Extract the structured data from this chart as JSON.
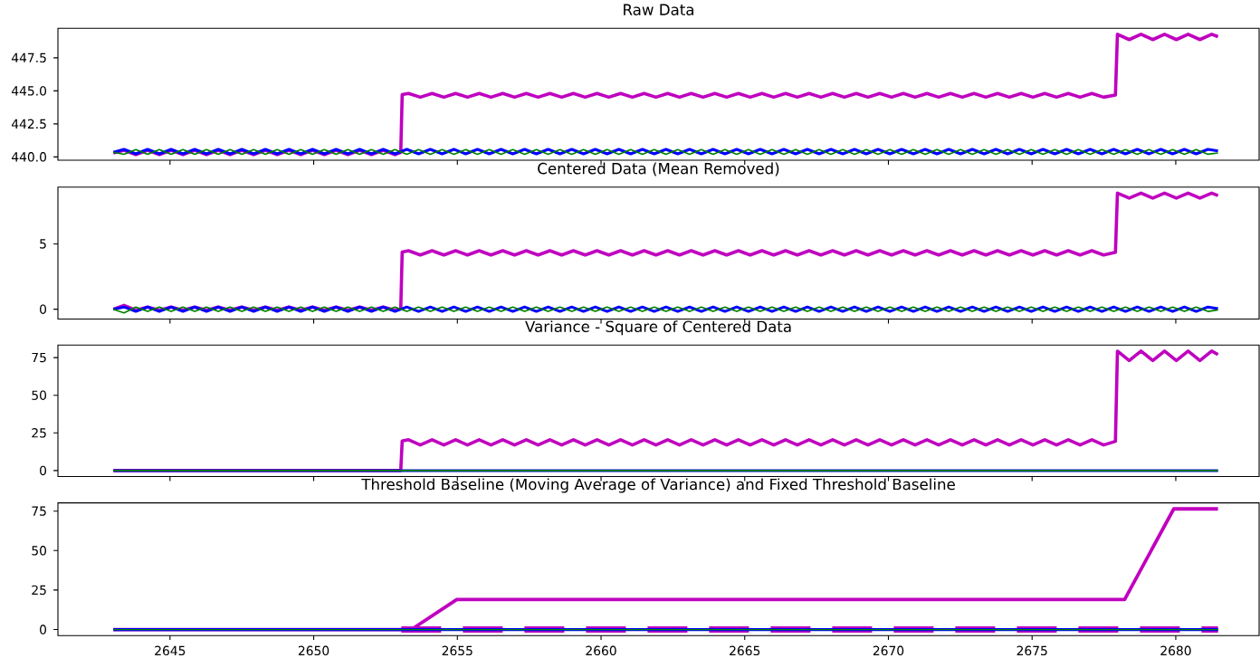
{
  "chart_data": [
    {
      "type": "line",
      "title": "Raw Data",
      "xlim": [
        2641.1,
        2682.9
      ],
      "xticks": [
        2645,
        2650,
        2655,
        2660,
        2665,
        2670,
        2675,
        2680
      ],
      "ylim": [
        439.75,
        449.74
      ],
      "yticks": [
        {
          "value": 440,
          "label": "440.0"
        },
        442.5,
        {
          "value": 445,
          "label": "445.0"
        },
        447.5
      ],
      "tick_labels": "y",
      "x": [
        2643.03,
        2643.4,
        2643.81,
        2644.22,
        2644.63,
        2645.04,
        2645.45,
        2645.86,
        2646.27,
        2646.68,
        2647.09,
        2647.5,
        2647.91,
        2648.32,
        2648.73,
        2649.14,
        2649.55,
        2649.96,
        2650.37,
        2650.78,
        2651.19,
        2651.6,
        2652.01,
        2652.42,
        2652.83,
        2653.24,
        2653.65,
        2654.06,
        2654.47,
        2654.88,
        2655.29,
        2655.7,
        2656.11,
        2656.52,
        2656.93,
        2657.34,
        2657.75,
        2658.16,
        2658.57,
        2658.98,
        2659.39,
        2659.8,
        2660.21,
        2660.62,
        2661.03,
        2661.44,
        2661.85,
        2662.26,
        2662.67,
        2663.08,
        2663.49,
        2663.9,
        2664.31,
        2664.72,
        2665.13,
        2665.54,
        2665.95,
        2666.36,
        2666.77,
        2667.18,
        2667.59,
        2668.0,
        2668.41,
        2668.82,
        2669.23,
        2669.64,
        2670.05,
        2670.46,
        2670.87,
        2671.28,
        2671.69,
        2672.1,
        2672.51,
        2672.92,
        2673.33,
        2673.74,
        2674.15,
        2674.56,
        2674.97,
        2675.38,
        2675.79,
        2676.2,
        2676.61,
        2677.02,
        2677.43,
        2677.84,
        2678.25,
        2678.66,
        2679.07,
        2679.48,
        2679.89,
        2680.3,
        2680.71,
        2681.12,
        2681.47
      ],
      "series": [
        {
          "color": "#bf00bf",
          "x": [
            2643.03,
            2643.4,
            2643.81,
            2644.22,
            2644.63,
            2645.04,
            2645.45,
            2645.86,
            2646.27,
            2646.68,
            2647.09,
            2647.5,
            2647.91,
            2648.32,
            2648.73,
            2649.14,
            2649.55,
            2649.96,
            2650.37,
            2650.78,
            2651.19,
            2651.6,
            2652.01,
            2652.42,
            2652.83,
            2653.03,
            2653.08,
            2653.3,
            2653.71,
            2654.12,
            2654.53,
            2654.94,
            2655.35,
            2655.76,
            2656.17,
            2656.58,
            2656.99,
            2657.4,
            2657.81,
            2658.22,
            2658.63,
            2659.04,
            2659.45,
            2659.86,
            2660.27,
            2660.68,
            2661.09,
            2661.5,
            2661.91,
            2662.32,
            2662.73,
            2663.14,
            2663.55,
            2663.96,
            2664.37,
            2664.78,
            2665.19,
            2665.6,
            2666.01,
            2666.42,
            2666.83,
            2667.24,
            2667.65,
            2668.06,
            2668.47,
            2668.88,
            2669.29,
            2669.7,
            2670.11,
            2670.52,
            2670.93,
            2671.34,
            2671.75,
            2672.16,
            2672.57,
            2672.98,
            2673.39,
            2673.8,
            2674.21,
            2674.62,
            2675.03,
            2675.44,
            2675.85,
            2676.26,
            2676.67,
            2677.08,
            2677.49,
            2677.9,
            2677.97,
            2678.38,
            2678.79,
            2679.2,
            2679.61,
            2680.02,
            2680.43,
            2680.84,
            2681.25,
            2681.47
          ],
          "values": [
            440.3,
            440.5,
            440.17,
            440.5,
            440.17,
            440.5,
            440.17,
            440.5,
            440.17,
            440.5,
            440.17,
            440.5,
            440.17,
            440.5,
            440.17,
            440.5,
            440.17,
            440.5,
            440.17,
            440.5,
            440.17,
            440.5,
            440.17,
            440.5,
            440.17,
            440.35,
            444.72,
            444.8,
            444.52,
            444.8,
            444.52,
            444.8,
            444.52,
            444.8,
            444.52,
            444.8,
            444.52,
            444.8,
            444.52,
            444.8,
            444.52,
            444.8,
            444.52,
            444.8,
            444.52,
            444.8,
            444.52,
            444.8,
            444.52,
            444.8,
            444.52,
            444.8,
            444.52,
            444.8,
            444.52,
            444.8,
            444.52,
            444.8,
            444.52,
            444.8,
            444.52,
            444.8,
            444.52,
            444.8,
            444.52,
            444.8,
            444.52,
            444.8,
            444.52,
            444.8,
            444.52,
            444.8,
            444.52,
            444.8,
            444.52,
            444.8,
            444.52,
            444.8,
            444.52,
            444.8,
            444.52,
            444.8,
            444.52,
            444.8,
            444.52,
            444.8,
            444.52,
            444.68,
            449.28,
            448.88,
            449.28,
            448.88,
            449.28,
            448.88,
            449.28,
            448.88,
            449.28,
            449.1
          ]
        },
        {
          "color": "#0000ff",
          "values": [
            440.35,
            440.57,
            440.23,
            440.57,
            440.23,
            440.57,
            440.23,
            440.57,
            440.23,
            440.57,
            440.23,
            440.57,
            440.23,
            440.57,
            440.23,
            440.57,
            440.23,
            440.57,
            440.23,
            440.57,
            440.23,
            440.57,
            440.23,
            440.57,
            440.23,
            440.57,
            440.23,
            440.57,
            440.23,
            440.57,
            440.23,
            440.57,
            440.23,
            440.57,
            440.23,
            440.57,
            440.23,
            440.57,
            440.23,
            440.57,
            440.23,
            440.57,
            440.23,
            440.57,
            440.23,
            440.57,
            440.23,
            440.57,
            440.23,
            440.57,
            440.23,
            440.57,
            440.23,
            440.57,
            440.23,
            440.57,
            440.23,
            440.57,
            440.23,
            440.57,
            440.23,
            440.57,
            440.23,
            440.57,
            440.23,
            440.57,
            440.23,
            440.57,
            440.23,
            440.57,
            440.23,
            440.57,
            440.23,
            440.57,
            440.23,
            440.57,
            440.23,
            440.57,
            440.23,
            440.57,
            440.23,
            440.57,
            440.23,
            440.57,
            440.23,
            440.57,
            440.23,
            440.57,
            440.23,
            440.57,
            440.23,
            440.57,
            440.23,
            440.57,
            440.45
          ]
        },
        {
          "color": "#008000",
          "values": [
            440.35,
            440.2,
            440.55,
            440.2,
            440.55,
            440.2,
            440.55,
            440.2,
            440.55,
            440.2,
            440.55,
            440.2,
            440.55,
            440.2,
            440.55,
            440.2,
            440.55,
            440.2,
            440.55,
            440.2,
            440.55,
            440.2,
            440.55,
            440.2,
            440.55,
            440.2,
            440.55,
            440.2,
            440.55,
            440.2,
            440.55,
            440.2,
            440.55,
            440.2,
            440.55,
            440.2,
            440.55,
            440.2,
            440.55,
            440.2,
            440.55,
            440.2,
            440.55,
            440.2,
            440.55,
            440.2,
            440.55,
            440.2,
            440.55,
            440.2,
            440.55,
            440.2,
            440.55,
            440.2,
            440.55,
            440.2,
            440.55,
            440.2,
            440.55,
            440.2,
            440.55,
            440.2,
            440.55,
            440.2,
            440.55,
            440.2,
            440.55,
            440.2,
            440.55,
            440.2,
            440.55,
            440.2,
            440.55,
            440.2,
            440.55,
            440.2,
            440.55,
            440.2,
            440.55,
            440.2,
            440.55,
            440.2,
            440.55,
            440.2,
            440.55,
            440.2,
            440.55,
            440.2,
            440.55,
            440.2,
            440.55,
            440.2,
            440.55,
            440.2,
            440.3
          ]
        }
      ]
    },
    {
      "type": "line",
      "title": "Centered Data (Mean Removed)",
      "xlim": [
        2641.1,
        2682.9
      ],
      "xticks": [
        2645,
        2650,
        2655,
        2660,
        2665,
        2670,
        2675,
        2680
      ],
      "ylim": [
        -0.75,
        9.35
      ],
      "yticks": [
        0,
        5
      ],
      "tick_labels": "y",
      "x": [
        2643.03,
        2643.4,
        2643.81,
        2644.22,
        2644.63,
        2645.04,
        2645.45,
        2645.86,
        2646.27,
        2646.68,
        2647.09,
        2647.5,
        2647.91,
        2648.32,
        2648.73,
        2649.14,
        2649.55,
        2649.96,
        2650.37,
        2650.78,
        2651.19,
        2651.6,
        2652.01,
        2652.42,
        2652.83,
        2653.24,
        2653.65,
        2654.06,
        2654.47,
        2654.88,
        2655.29,
        2655.7,
        2656.11,
        2656.52,
        2656.93,
        2657.34,
        2657.75,
        2658.16,
        2658.57,
        2658.98,
        2659.39,
        2659.8,
        2660.21,
        2660.62,
        2661.03,
        2661.44,
        2661.85,
        2662.26,
        2662.67,
        2663.08,
        2663.49,
        2663.9,
        2664.31,
        2664.72,
        2665.13,
        2665.54,
        2665.95,
        2666.36,
        2666.77,
        2667.18,
        2667.59,
        2668.0,
        2668.41,
        2668.82,
        2669.23,
        2669.64,
        2670.05,
        2670.46,
        2670.87,
        2671.28,
        2671.69,
        2672.1,
        2672.51,
        2672.92,
        2673.33,
        2673.74,
        2674.15,
        2674.56,
        2674.97,
        2675.38,
        2675.79,
        2676.2,
        2676.61,
        2677.02,
        2677.43,
        2677.84,
        2678.25,
        2678.66,
        2679.07,
        2679.48,
        2679.89,
        2680.3,
        2680.71,
        2681.12,
        2681.47
      ],
      "series": [
        {
          "color": "#bf00bf",
          "x": [
            2643.03,
            2643.4,
            2643.81,
            2644.22,
            2644.63,
            2645.04,
            2645.45,
            2645.86,
            2646.27,
            2646.68,
            2647.09,
            2647.5,
            2647.91,
            2648.32,
            2648.73,
            2649.14,
            2649.55,
            2649.96,
            2650.37,
            2650.78,
            2651.19,
            2651.6,
            2652.01,
            2652.42,
            2652.83,
            2653.03,
            2653.08,
            2653.3,
            2653.71,
            2654.12,
            2654.53,
            2654.94,
            2655.35,
            2655.76,
            2656.17,
            2656.58,
            2656.99,
            2657.4,
            2657.81,
            2658.22,
            2658.63,
            2659.04,
            2659.45,
            2659.86,
            2660.27,
            2660.68,
            2661.09,
            2661.5,
            2661.91,
            2662.32,
            2662.73,
            2663.14,
            2663.55,
            2663.96,
            2664.37,
            2664.78,
            2665.19,
            2665.6,
            2666.01,
            2666.42,
            2666.83,
            2667.24,
            2667.65,
            2668.06,
            2668.47,
            2668.88,
            2669.29,
            2669.7,
            2670.11,
            2670.52,
            2670.93,
            2671.34,
            2671.75,
            2672.16,
            2672.57,
            2672.98,
            2673.39,
            2673.8,
            2674.21,
            2674.62,
            2675.03,
            2675.44,
            2675.85,
            2676.26,
            2676.67,
            2677.08,
            2677.49,
            2677.9,
            2677.97,
            2678.38,
            2678.79,
            2679.2,
            2679.61,
            2680.02,
            2680.43,
            2680.84,
            2681.25,
            2681.47
          ],
          "values": [
            0,
            0.3,
            -0.07,
            0.17,
            -0.07,
            0.17,
            -0.07,
            0.17,
            -0.07,
            0.17,
            -0.07,
            0.17,
            -0.07,
            0.17,
            -0.07,
            0.17,
            -0.07,
            0.17,
            -0.07,
            0.17,
            -0.07,
            0.17,
            -0.07,
            0.17,
            -0.07,
            0.05,
            4.38,
            4.48,
            4.15,
            4.48,
            4.15,
            4.48,
            4.15,
            4.48,
            4.15,
            4.48,
            4.15,
            4.48,
            4.15,
            4.48,
            4.15,
            4.48,
            4.15,
            4.48,
            4.15,
            4.48,
            4.15,
            4.48,
            4.15,
            4.48,
            4.15,
            4.48,
            4.15,
            4.48,
            4.15,
            4.48,
            4.15,
            4.48,
            4.15,
            4.48,
            4.15,
            4.48,
            4.15,
            4.48,
            4.15,
            4.48,
            4.15,
            4.48,
            4.15,
            4.48,
            4.15,
            4.48,
            4.15,
            4.48,
            4.15,
            4.48,
            4.15,
            4.48,
            4.15,
            4.48,
            4.15,
            4.48,
            4.15,
            4.48,
            4.15,
            4.48,
            4.15,
            4.35,
            8.89,
            8.5,
            8.89,
            8.5,
            8.89,
            8.5,
            8.89,
            8.5,
            8.89,
            8.7
          ]
        },
        {
          "color": "#0000ff",
          "values": [
            0,
            0.17,
            -0.17,
            0.17,
            -0.17,
            0.17,
            -0.17,
            0.17,
            -0.17,
            0.17,
            -0.17,
            0.17,
            -0.17,
            0.17,
            -0.17,
            0.17,
            -0.17,
            0.17,
            -0.17,
            0.17,
            -0.17,
            0.17,
            -0.17,
            0.17,
            -0.17,
            0.17,
            -0.17,
            0.17,
            -0.17,
            0.17,
            -0.17,
            0.17,
            -0.17,
            0.17,
            -0.17,
            0.17,
            -0.17,
            0.17,
            -0.17,
            0.17,
            -0.17,
            0.17,
            -0.17,
            0.17,
            -0.17,
            0.17,
            -0.17,
            0.17,
            -0.17,
            0.17,
            -0.17,
            0.17,
            -0.17,
            0.17,
            -0.17,
            0.17,
            -0.17,
            0.17,
            -0.17,
            0.17,
            -0.17,
            0.17,
            -0.17,
            0.17,
            -0.17,
            0.17,
            -0.17,
            0.17,
            -0.17,
            0.17,
            -0.17,
            0.17,
            -0.17,
            0.17,
            -0.17,
            0.17,
            -0.17,
            0.17,
            -0.17,
            0.17,
            -0.17,
            0.17,
            -0.17,
            0.17,
            -0.17,
            0.17,
            -0.17,
            0.17,
            -0.17,
            0.17,
            -0.17,
            0.17,
            -0.17,
            0.17,
            0.05
          ]
        },
        {
          "color": "#008000",
          "values": [
            0,
            -0.28,
            0.17,
            -0.17,
            0.17,
            -0.17,
            0.17,
            -0.17,
            0.17,
            -0.17,
            0.17,
            -0.17,
            0.17,
            -0.17,
            0.17,
            -0.17,
            0.17,
            -0.17,
            0.17,
            -0.17,
            0.17,
            -0.17,
            0.17,
            -0.17,
            0.17,
            -0.17,
            0.17,
            -0.17,
            0.17,
            -0.17,
            0.17,
            -0.17,
            0.17,
            -0.17,
            0.17,
            -0.17,
            0.17,
            -0.17,
            0.17,
            -0.17,
            0.17,
            -0.17,
            0.17,
            -0.17,
            0.17,
            -0.17,
            0.17,
            -0.17,
            0.17,
            -0.17,
            0.17,
            -0.17,
            0.17,
            -0.17,
            0.17,
            -0.17,
            0.17,
            -0.17,
            0.17,
            -0.17,
            0.17,
            -0.17,
            0.17,
            -0.17,
            0.17,
            -0.17,
            0.17,
            -0.17,
            0.17,
            -0.17,
            0.17,
            -0.17,
            0.17,
            -0.17,
            0.17,
            -0.17,
            0.17,
            -0.17,
            0.17,
            -0.17,
            0.17,
            -0.17,
            0.17,
            -0.17,
            0.17,
            -0.17,
            0.17,
            -0.17,
            0.17,
            -0.17,
            0.17,
            -0.17,
            0.17,
            -0.17,
            -0.05
          ]
        }
      ]
    },
    {
      "type": "line",
      "title": "Variance - Square of Centered Data",
      "xlim": [
        2641.1,
        2682.9
      ],
      "xticks": [
        2645,
        2650,
        2655,
        2660,
        2665,
        2670,
        2675,
        2680
      ],
      "ylim": [
        -3.97,
        83.3
      ],
      "yticks": [
        0,
        25,
        50,
        75
      ],
      "tick_labels": "y",
      "series": [
        {
          "color": "#bf00bf",
          "x": [
            2643.03,
            2653.03,
            2653.08,
            2653.3,
            2653.71,
            2654.12,
            2654.53,
            2654.94,
            2655.35,
            2655.76,
            2656.17,
            2656.58,
            2656.99,
            2657.4,
            2657.81,
            2658.22,
            2658.63,
            2659.04,
            2659.45,
            2659.86,
            2660.27,
            2660.68,
            2661.09,
            2661.5,
            2661.91,
            2662.32,
            2662.73,
            2663.14,
            2663.55,
            2663.96,
            2664.37,
            2664.78,
            2665.19,
            2665.6,
            2666.01,
            2666.42,
            2666.83,
            2667.24,
            2667.65,
            2668.06,
            2668.47,
            2668.88,
            2669.29,
            2669.7,
            2670.11,
            2670.52,
            2670.93,
            2671.34,
            2671.75,
            2672.16,
            2672.57,
            2672.98,
            2673.39,
            2673.8,
            2674.21,
            2674.62,
            2675.03,
            2675.44,
            2675.85,
            2676.26,
            2676.67,
            2677.08,
            2677.49,
            2677.9,
            2677.97,
            2678.38,
            2678.79,
            2679.2,
            2679.61,
            2680.02,
            2680.43,
            2680.84,
            2681.25,
            2681.47
          ],
          "values": [
            0,
            0,
            19.6,
            20.5,
            17,
            20.5,
            17,
            20.5,
            17,
            20.5,
            17,
            20.5,
            17,
            20.5,
            17,
            20.5,
            17,
            20.5,
            17,
            20.5,
            17,
            20.5,
            17,
            20.5,
            17,
            20.5,
            17,
            20.5,
            17,
            20.5,
            17,
            20.5,
            17,
            20.5,
            17,
            20.5,
            17,
            20.5,
            17,
            20.5,
            17,
            20.5,
            17,
            20.5,
            17,
            20.5,
            17,
            20.5,
            17,
            20.5,
            17,
            20.5,
            17,
            20.5,
            17,
            20.5,
            17,
            20.5,
            17,
            20.5,
            17,
            20.5,
            17,
            19.4,
            79.3,
            73,
            79.3,
            73,
            79.3,
            73,
            79.3,
            73,
            79.3,
            77
          ]
        },
        {
          "color": "#0000ff",
          "x": [
            2643.03,
            2681.47
          ],
          "values": [
            0,
            0
          ]
        },
        {
          "color": "#008000",
          "x": [
            2643.03,
            2681.47
          ],
          "values": [
            0,
            0
          ]
        }
      ]
    },
    {
      "type": "line",
      "title": "Threshold Baseline (Moving Average of Variance) and Fixed Threshold Baseline",
      "xlim": [
        2641.1,
        2682.9
      ],
      "xticks": [
        2645,
        2650,
        2655,
        2660,
        2665,
        2670,
        2675,
        2680
      ],
      "ylim": [
        -3.82,
        80.22
      ],
      "yticks": [
        0,
        25,
        50,
        75
      ],
      "series": [
        {
          "color": "#bf00bf",
          "x": [
            2643.03,
            2653.4,
            2654.98,
            2678.22,
            2679.93,
            2681.47
          ],
          "values": [
            0,
            0,
            19.0,
            19.0,
            76.4,
            76.4
          ]
        },
        {
          "color": "#bf00bf",
          "line_style": "dashed",
          "x": [
            2653.05,
            2681.47
          ],
          "values": [
            0,
            0
          ]
        },
        {
          "color": "#0000ff",
          "x": [
            2643.03,
            2681.47
          ],
          "values": [
            0,
            0
          ]
        },
        {
          "color": "#008000",
          "x": [
            2643.03,
            2681.47
          ],
          "values": [
            0,
            0
          ]
        }
      ]
    }
  ]
}
